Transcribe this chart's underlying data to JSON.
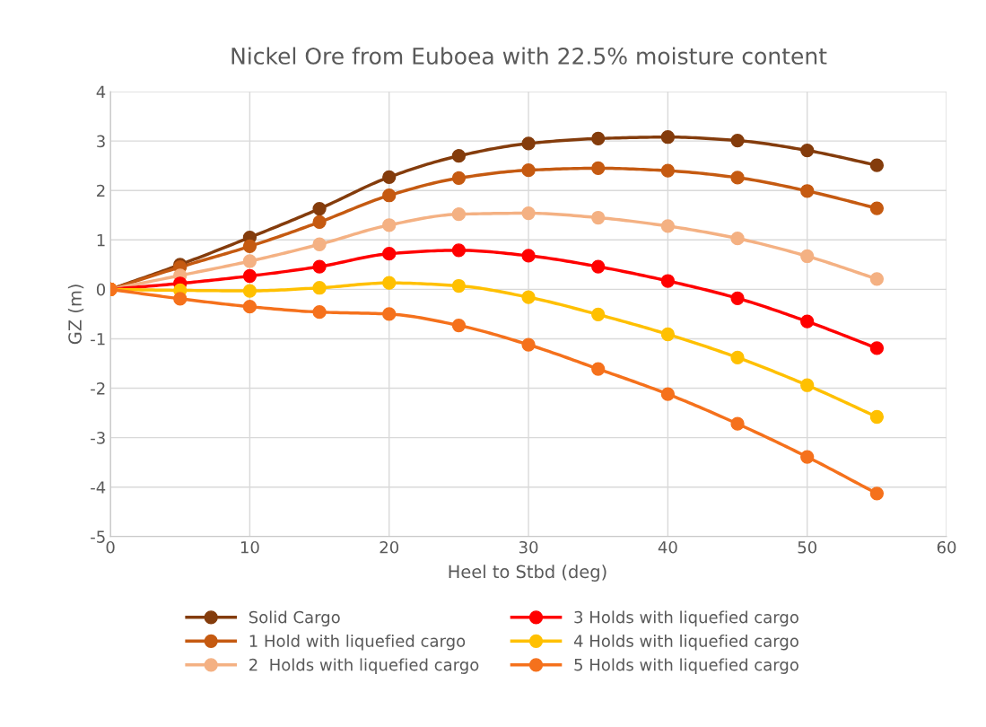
{
  "chart_data": {
    "type": "line",
    "title": "Nickel Ore from Euboea with 22.5% moisture content",
    "xlabel": "Heel to Stbd (deg)",
    "ylabel": "GZ (m)",
    "x": [
      0,
      5,
      10,
      15,
      20,
      25,
      30,
      35,
      40,
      45,
      50,
      55
    ],
    "series": [
      {
        "name": "Solid Cargo",
        "color": "#843c0c",
        "values": [
          0,
          0.5,
          1.05,
          1.63,
          2.27,
          2.7,
          2.95,
          3.05,
          3.08,
          3.01,
          2.81,
          2.51
        ]
      },
      {
        "name": "1 Hold with liquefied cargo",
        "color": "#c55a11",
        "values": [
          0,
          0.45,
          0.87,
          1.36,
          1.9,
          2.25,
          2.41,
          2.45,
          2.4,
          2.26,
          1.99,
          1.64
        ]
      },
      {
        "name": "2  Holds with liquefied cargo",
        "color": "#f4b183",
        "values": [
          0,
          0.28,
          0.57,
          0.91,
          1.3,
          1.52,
          1.54,
          1.45,
          1.28,
          1.03,
          0.67,
          0.21
        ]
      },
      {
        "name": "3 Holds with liquefied cargo",
        "color": "#ff0000",
        "values": [
          0,
          0.12,
          0.27,
          0.46,
          0.72,
          0.79,
          0.68,
          0.46,
          0.17,
          -0.18,
          -0.65,
          -1.19
        ]
      },
      {
        "name": "4 Holds with liquefied cargo",
        "color": "#ffc000",
        "values": [
          0,
          -0.02,
          -0.03,
          0.03,
          0.13,
          0.07,
          -0.16,
          -0.51,
          -0.91,
          -1.38,
          -1.94,
          -2.58
        ]
      },
      {
        "name": "5 Holds with liquefied cargo",
        "color": "#f5711c",
        "values": [
          0,
          -0.19,
          -0.35,
          -0.46,
          -0.5,
          -0.73,
          -1.12,
          -1.61,
          -2.12,
          -2.72,
          -3.39,
          -4.13
        ]
      }
    ],
    "xlim": [
      0,
      60
    ],
    "xticks": [
      0,
      10,
      20,
      30,
      40,
      50,
      60
    ],
    "ylim": [
      -5,
      4
    ],
    "yticks": [
      -5,
      -4,
      -3,
      -2,
      -1,
      0,
      1,
      2,
      3,
      4
    ],
    "grid": true,
    "legend": "bottom",
    "marker": "circle",
    "line_style": "solid"
  }
}
